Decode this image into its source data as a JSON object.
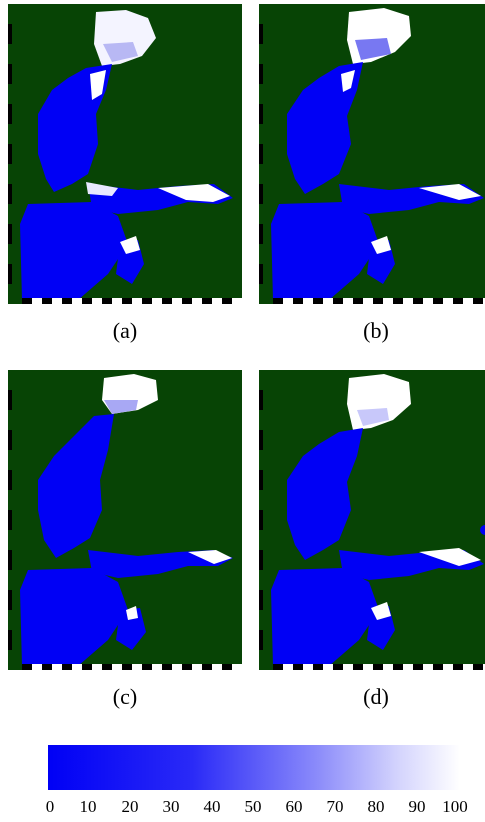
{
  "panels": [
    {
      "label": "(a)"
    },
    {
      "label": "(b)"
    },
    {
      "label": "(c)"
    },
    {
      "label": "(d)"
    }
  ],
  "colorbar": {
    "ticks": [
      "0",
      "10",
      "20",
      "30",
      "40",
      "50",
      "60",
      "70",
      "80",
      "90",
      "100"
    ],
    "min": 0,
    "max": 100,
    "low_color": "#0000f5",
    "high_color": "#ffffff"
  },
  "colors": {
    "land": "#074405",
    "sea_open": "#0000f5",
    "ice": "#ffffff"
  }
}
